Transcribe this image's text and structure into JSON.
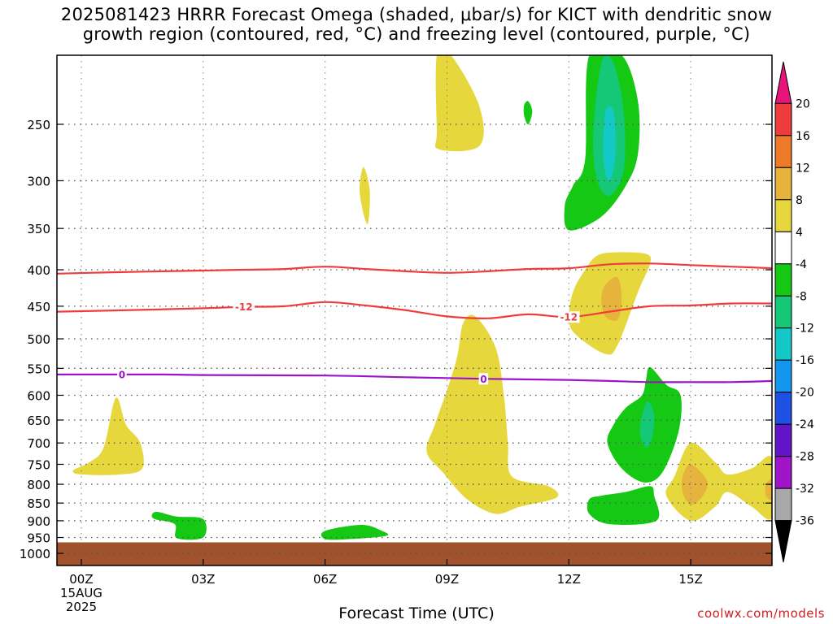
{
  "chart_data": {
    "type": "heatmap",
    "title_line1": "2025081423 HRRR Forecast Omega (shaded, μbar/s) for KICT with dendritic snow",
    "title_line2": "growth region (contoured, red, °C) and freezing level (contoured, purple, °C)",
    "xlabel": "Forecast Time (UTC)",
    "x_ticks": [
      {
        "hour": 0,
        "label": "00Z"
      },
      {
        "hour": 3,
        "label": "03Z"
      },
      {
        "hour": 6,
        "label": "06Z"
      },
      {
        "hour": 9,
        "label": "09Z"
      },
      {
        "hour": 12,
        "label": "12Z"
      },
      {
        "hour": 15,
        "label": "15Z"
      }
    ],
    "date_label_lines": [
      "15AUG",
      "2025"
    ],
    "x_range_hours": [
      -0.6,
      17
    ],
    "y_ticks_hpa": [
      250,
      300,
      350,
      400,
      450,
      500,
      550,
      600,
      650,
      700,
      750,
      800,
      850,
      900,
      950,
      1000
    ],
    "y_range_hpa": [
      200,
      1040
    ],
    "y_scale": "log",
    "grid": "dotted",
    "ground_level_hpa": 965,
    "ground_color": "#a0522d",
    "colorbar": {
      "labels": [
        "20",
        "16",
        "12",
        "8",
        "4",
        "-4",
        "-8",
        "-12",
        "-16",
        "-20",
        "-24",
        "-28",
        "-32",
        "-36"
      ],
      "colors": [
        "#e8147a",
        "#ee3c3c",
        "#ee7a28",
        "#e6b43c",
        "#e6d83c",
        "#ffffff",
        "#14c814",
        "#14c878",
        "#14c8c8",
        "#1496ee",
        "#1e50e6",
        "#6414c8",
        "#a014c8",
        "#a8a8a8",
        "#000000"
      ]
    },
    "contours": [
      {
        "kind": "dendritic",
        "color": "#ee3c3c",
        "label": "-12",
        "points": [
          [
            -0.6,
            458
          ],
          [
            1,
            456
          ],
          [
            3,
            453
          ],
          [
            4,
            451
          ],
          [
            5,
            450
          ],
          [
            6,
            444
          ],
          [
            7,
            449
          ],
          [
            8,
            456
          ],
          [
            9,
            465
          ],
          [
            10,
            468
          ],
          [
            11,
            462
          ],
          [
            12,
            466
          ],
          [
            13,
            458
          ],
          [
            14,
            450
          ],
          [
            15,
            449
          ],
          [
            16,
            446
          ],
          [
            17,
            446
          ]
        ]
      },
      {
        "kind": "dendritic",
        "color": "#ee3c3c",
        "label": "",
        "points": [
          [
            -0.6,
            405
          ],
          [
            1,
            403
          ],
          [
            2,
            402
          ],
          [
            3,
            401
          ],
          [
            4,
            400
          ],
          [
            5,
            399
          ],
          [
            6,
            396
          ],
          [
            7,
            399
          ],
          [
            8,
            402
          ],
          [
            9,
            404
          ],
          [
            10,
            402
          ],
          [
            11,
            399
          ],
          [
            12,
            398
          ],
          [
            13,
            393
          ],
          [
            14,
            392
          ],
          [
            15,
            394
          ],
          [
            16,
            396
          ],
          [
            17,
            398
          ]
        ]
      },
      {
        "kind": "freezing",
        "color": "#9b14c8",
        "label": "0",
        "points": [
          [
            -0.6,
            561
          ],
          [
            1,
            561
          ],
          [
            2,
            561
          ],
          [
            3,
            562
          ],
          [
            6,
            563
          ],
          [
            8,
            566
          ],
          [
            10,
            569
          ],
          [
            12,
            571
          ],
          [
            13,
            573
          ],
          [
            14,
            575
          ],
          [
            15,
            575
          ],
          [
            16,
            575
          ],
          [
            17,
            573
          ]
        ]
      }
    ],
    "contour_labels": [
      {
        "text": "-12",
        "hour": 4.0,
        "hpa": 451,
        "color": "#ee3c3c"
      },
      {
        "text": "-12",
        "hour": 12.0,
        "hpa": 466,
        "color": "#ee3c3c"
      },
      {
        "text": "0",
        "hour": 1.0,
        "hpa": 561,
        "color": "#9b14c8"
      },
      {
        "text": "0",
        "hour": 9.9,
        "hpa": 569,
        "color": "#9b14c8"
      }
    ],
    "shaded_regions": [
      {
        "color": "#e6d83c",
        "polygon": [
          [
            8.75,
            200
          ],
          [
            9.1,
            200
          ],
          [
            9.8,
            236
          ],
          [
            9.8,
            268
          ],
          [
            8.8,
            271
          ],
          [
            8.75,
            255
          ]
        ]
      },
      {
        "color": "#e6d83c",
        "polygon": [
          [
            6.95,
            287
          ],
          [
            7.1,
            310
          ],
          [
            7.05,
            345
          ],
          [
            6.9,
            325
          ],
          [
            6.85,
            305
          ]
        ]
      },
      {
        "color": "#14c814",
        "polygon": [
          [
            10.9,
            235
          ],
          [
            11.0,
            232
          ],
          [
            11.1,
            240
          ],
          [
            11.0,
            250
          ],
          [
            10.9,
            243
          ]
        ]
      },
      {
        "color": "#14c814",
        "polygon": [
          [
            12.5,
            200
          ],
          [
            13.3,
            200
          ],
          [
            13.7,
            232
          ],
          [
            13.7,
            275
          ],
          [
            13.4,
            305
          ],
          [
            12.8,
            337
          ],
          [
            12.0,
            352
          ],
          [
            11.9,
            325
          ],
          [
            12.1,
            305
          ],
          [
            12.4,
            280
          ]
        ]
      },
      {
        "color": "#14c878",
        "polygon": [
          [
            12.8,
            205
          ],
          [
            13.1,
            205
          ],
          [
            13.35,
            240
          ],
          [
            13.35,
            290
          ],
          [
            13.0,
            315
          ],
          [
            12.7,
            300
          ],
          [
            12.6,
            260
          ]
        ]
      },
      {
        "color": "#14c8c8",
        "polygon": [
          [
            12.9,
            240
          ],
          [
            13.1,
            240
          ],
          [
            13.15,
            275
          ],
          [
            13.0,
            300
          ],
          [
            12.85,
            280
          ]
        ]
      },
      {
        "color": "#e6d83c",
        "polygon": [
          [
            12.7,
            382
          ],
          [
            13.2,
            378
          ],
          [
            13.9,
            380
          ],
          [
            14.0,
            392
          ],
          [
            13.7,
            430
          ],
          [
            13.2,
            510
          ],
          [
            12.9,
            525
          ],
          [
            12.2,
            495
          ],
          [
            12.0,
            470
          ],
          [
            12.1,
            430
          ],
          [
            12.4,
            400
          ]
        ]
      },
      {
        "color": "#e6b43c",
        "polygon": [
          [
            12.9,
            420
          ],
          [
            13.2,
            410
          ],
          [
            13.3,
            440
          ],
          [
            13.2,
            470
          ],
          [
            12.9,
            465
          ],
          [
            12.8,
            440
          ]
        ]
      },
      {
        "color": "#e6d83c",
        "polygon": [
          [
            9.4,
            475
          ],
          [
            9.7,
            465
          ],
          [
            10.2,
            515
          ],
          [
            10.4,
            600
          ],
          [
            10.5,
            700
          ],
          [
            10.6,
            780
          ],
          [
            11.5,
            805
          ],
          [
            11.7,
            835
          ],
          [
            10.8,
            860
          ],
          [
            10.2,
            880
          ],
          [
            9.5,
            840
          ],
          [
            8.9,
            770
          ],
          [
            8.5,
            720
          ],
          [
            8.7,
            660
          ],
          [
            9.0,
            590
          ],
          [
            9.25,
            530
          ]
        ]
      },
      {
        "color": "#14c814",
        "polygon": [
          [
            14.0,
            548
          ],
          [
            14.4,
            580
          ],
          [
            14.75,
            600
          ],
          [
            14.7,
            675
          ],
          [
            14.3,
            770
          ],
          [
            13.85,
            795
          ],
          [
            13.3,
            760
          ],
          [
            12.95,
            700
          ],
          [
            13.1,
            660
          ],
          [
            13.4,
            625
          ],
          [
            13.8,
            600
          ],
          [
            13.9,
            570
          ]
        ]
      },
      {
        "color": "#14c878",
        "polygon": [
          [
            13.95,
            612
          ],
          [
            14.1,
            640
          ],
          [
            14.05,
            690
          ],
          [
            13.9,
            710
          ],
          [
            13.75,
            680
          ],
          [
            13.8,
            640
          ]
        ]
      },
      {
        "color": "#14c814",
        "polygon": [
          [
            14.0,
            805
          ],
          [
            14.1,
            830
          ],
          [
            14.15,
            900
          ],
          [
            13.0,
            910
          ],
          [
            12.5,
            880
          ],
          [
            12.5,
            840
          ],
          [
            12.8,
            830
          ],
          [
            13.4,
            820
          ]
        ]
      },
      {
        "color": "#e6d83c",
        "polygon": [
          [
            15.0,
            700
          ],
          [
            15.6,
            745
          ],
          [
            15.9,
            775
          ],
          [
            16.5,
            760
          ],
          [
            17,
            735
          ],
          [
            17,
            890
          ],
          [
            16.5,
            860
          ],
          [
            15.9,
            820
          ],
          [
            15.6,
            860
          ],
          [
            15.0,
            900
          ],
          [
            14.4,
            830
          ],
          [
            14.6,
            780
          ]
        ]
      },
      {
        "color": "#e6b43c",
        "polygon": [
          [
            15.0,
            750
          ],
          [
            15.4,
            790
          ],
          [
            15.3,
            830
          ],
          [
            15.0,
            855
          ],
          [
            14.8,
            820
          ],
          [
            14.8,
            780
          ]
        ]
      },
      {
        "color": "#e6b43c",
        "polygon": [
          [
            16.85,
            800
          ],
          [
            17,
            790
          ],
          [
            17,
            840
          ],
          [
            16.85,
            830
          ]
        ]
      },
      {
        "color": "#e6d83c",
        "polygon": [
          [
            0.55,
            710
          ],
          [
            0.85,
            605
          ],
          [
            1.1,
            660
          ],
          [
            1.45,
            700
          ],
          [
            1.5,
            760
          ],
          [
            0.95,
            775
          ],
          [
            0.0,
            775
          ],
          [
            -0.2,
            765
          ],
          [
            0.2,
            745
          ]
        ]
      },
      {
        "color": "#14c814",
        "polygon": [
          [
            1.75,
            880
          ],
          [
            1.9,
            875
          ],
          [
            2.35,
            888
          ],
          [
            3.0,
            895
          ],
          [
            3.0,
            950
          ],
          [
            2.35,
            952
          ],
          [
            2.3,
            910
          ],
          [
            1.8,
            895
          ]
        ]
      },
      {
        "color": "#14c814",
        "polygon": [
          [
            6.0,
            930
          ],
          [
            6.9,
            912
          ],
          [
            7.4,
            930
          ],
          [
            7.5,
            945
          ],
          [
            6.6,
            955
          ],
          [
            6.0,
            955
          ]
        ]
      }
    ]
  },
  "credit": "coolwx.com/models"
}
